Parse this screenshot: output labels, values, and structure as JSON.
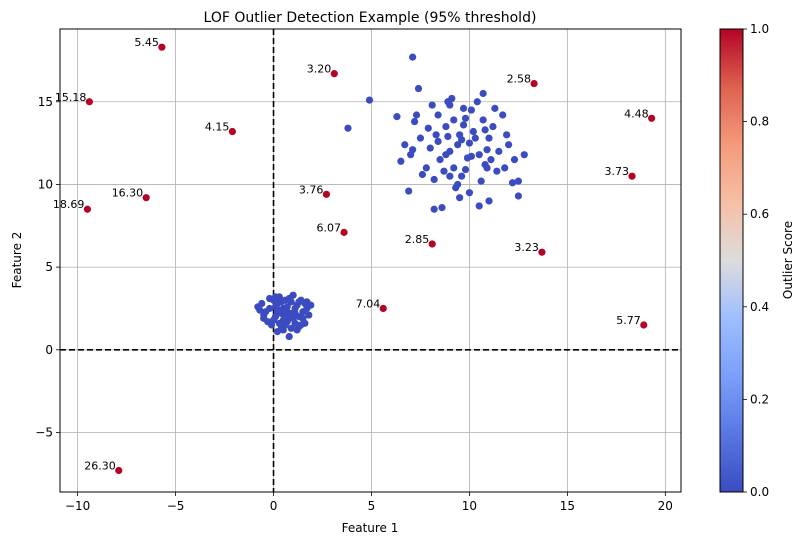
{
  "chart_data": {
    "type": "scatter",
    "title": "LOF Outlier Detection Example (95% threshold)",
    "xlabel": "Feature 1",
    "ylabel": "Feature 2",
    "xlim": [
      -10.9,
      20.8
    ],
    "ylim": [
      -8.6,
      19.4
    ],
    "xticks": [
      -10,
      -5,
      0,
      5,
      10,
      15,
      20
    ],
    "yticks": [
      -5,
      0,
      5,
      10,
      15
    ],
    "grid": true,
    "reference_lines": {
      "x": 0,
      "y": 0,
      "style": "dashed"
    },
    "colorbar": {
      "label": "Outlier Score",
      "colormap": "coolwarm",
      "range": [
        0,
        1
      ],
      "ticks": [
        0.0,
        0.2,
        0.4,
        0.6,
        0.8,
        1.0
      ],
      "tick_labels": [
        "0.0",
        "0.2",
        "0.4",
        "0.6",
        "0.8",
        "1.0"
      ],
      "low_color": "#3b4cc0",
      "high_color": "#b40426"
    },
    "colors": {
      "inlier": "#3b4cc0",
      "outlier": "#b40426"
    },
    "outliers": [
      {
        "x": -5.7,
        "y": 18.3,
        "label": "5.45"
      },
      {
        "x": 3.1,
        "y": 16.7,
        "label": "3.20"
      },
      {
        "x": 13.3,
        "y": 16.1,
        "label": "2.58"
      },
      {
        "x": -9.4,
        "y": 15.0,
        "label": "15.18"
      },
      {
        "x": -2.1,
        "y": 13.2,
        "label": "4.15"
      },
      {
        "x": 19.3,
        "y": 14.0,
        "label": "4.48"
      },
      {
        "x": 18.3,
        "y": 10.5,
        "label": "3.73"
      },
      {
        "x": -6.5,
        "y": 9.2,
        "label": "16.30"
      },
      {
        "x": 2.7,
        "y": 9.4,
        "label": "3.76"
      },
      {
        "x": -9.5,
        "y": 8.5,
        "label": "18.69"
      },
      {
        "x": 3.6,
        "y": 7.1,
        "label": "6.07"
      },
      {
        "x": 8.1,
        "y": 6.4,
        "label": "2.85"
      },
      {
        "x": 13.7,
        "y": 5.9,
        "label": "3.23"
      },
      {
        "x": 5.6,
        "y": 2.5,
        "label": "7.04"
      },
      {
        "x": 18.9,
        "y": 1.5,
        "label": "5.77"
      },
      {
        "x": -7.9,
        "y": -7.3,
        "label": "26.30"
      }
    ],
    "inliers": [
      [
        0.1,
        2.0
      ],
      [
        0.3,
        2.4
      ],
      [
        0.5,
        1.8
      ],
      [
        0.7,
        2.6
      ],
      [
        0.9,
        2.2
      ],
      [
        1.1,
        1.6
      ],
      [
        1.3,
        2.9
      ],
      [
        -0.2,
        2.5
      ],
      [
        -0.5,
        2.1
      ],
      [
        0.0,
        3.0
      ],
      [
        0.4,
        1.4
      ],
      [
        0.8,
        3.1
      ],
      [
        1.2,
        2.7
      ],
      [
        1.5,
        2.3
      ],
      [
        -0.3,
        1.7
      ],
      [
        0.6,
        2.0
      ],
      [
        0.2,
        2.8
      ],
      [
        1.0,
        1.9
      ],
      [
        0.5,
        1.2
      ],
      [
        1.4,
        1.5
      ],
      [
        -0.6,
        2.8
      ],
      [
        0.9,
        1.3
      ],
      [
        1.6,
        2.8
      ],
      [
        0.3,
        3.2
      ],
      [
        -0.1,
        1.5
      ],
      [
        1.3,
        2.0
      ],
      [
        0.7,
        1.7
      ],
      [
        0.1,
        2.6
      ],
      [
        1.8,
        2.1
      ],
      [
        -0.4,
        2.3
      ],
      [
        0.6,
        3.0
      ],
      [
        1.1,
        2.5
      ],
      [
        0.4,
        2.2
      ],
      [
        0.8,
        0.8
      ],
      [
        1.7,
        2.5
      ],
      [
        -0.7,
        2.4
      ],
      [
        1.0,
        3.3
      ],
      [
        0.2,
        1.1
      ],
      [
        1.5,
        1.9
      ],
      [
        0.0,
        1.8
      ],
      [
        0.9,
        2.9
      ],
      [
        1.2,
        1.2
      ],
      [
        0.3,
        1.6
      ],
      [
        -0.2,
        3.1
      ],
      [
        1.9,
        2.7
      ],
      [
        0.5,
        2.5
      ],
      [
        0.7,
        2.3
      ],
      [
        1.4,
        3.0
      ],
      [
        -0.5,
        1.9
      ],
      [
        1.6,
        1.6
      ],
      [
        0.1,
        3.2
      ],
      [
        1.1,
        2.2
      ],
      [
        0.6,
        1.5
      ],
      [
        0.4,
        2.9
      ],
      [
        1.3,
        1.4
      ],
      [
        -0.8,
        2.6
      ],
      [
        1.0,
        2.0
      ],
      [
        0.8,
        1.9
      ],
      [
        0.2,
        2.3
      ],
      [
        1.7,
        2.9
      ],
      [
        9.0,
        12.0
      ],
      [
        9.5,
        13.0
      ],
      [
        10.0,
        12.5
      ],
      [
        8.5,
        11.5
      ],
      [
        9.2,
        11.0
      ],
      [
        10.5,
        11.8
      ],
      [
        8.8,
        13.5
      ],
      [
        9.8,
        14.0
      ],
      [
        10.2,
        13.2
      ],
      [
        11.0,
        12.8
      ],
      [
        8.0,
        12.2
      ],
      [
        9.4,
        12.4
      ],
      [
        10.8,
        11.2
      ],
      [
        7.8,
        11.0
      ],
      [
        9.6,
        10.5
      ],
      [
        11.5,
        12.0
      ],
      [
        8.3,
        13.0
      ],
      [
        10.1,
        14.5
      ],
      [
        9.0,
        14.8
      ],
      [
        11.2,
        13.5
      ],
      [
        7.5,
        12.8
      ],
      [
        12.0,
        12.4
      ],
      [
        8.7,
        10.8
      ],
      [
        10.6,
        10.2
      ],
      [
        9.3,
        9.8
      ],
      [
        11.8,
        11.0
      ],
      [
        7.2,
        13.8
      ],
      [
        8.4,
        14.2
      ],
      [
        10.4,
        15.0
      ],
      [
        12.3,
        11.5
      ],
      [
        7.0,
        11.8
      ],
      [
        9.9,
        11.6
      ],
      [
        8.9,
        12.9
      ],
      [
        10.7,
        13.9
      ],
      [
        11.4,
        10.8
      ],
      [
        8.2,
        10.3
      ],
      [
        9.7,
        13.6
      ],
      [
        10.9,
        12.1
      ],
      [
        7.6,
        10.6
      ],
      [
        12.5,
        10.2
      ],
      [
        9.1,
        15.2
      ],
      [
        7.3,
        14.2
      ],
      [
        11.7,
        14.2
      ],
      [
        8.6,
        8.6
      ],
      [
        10.0,
        9.5
      ],
      [
        11.0,
        9.0
      ],
      [
        12.5,
        9.3
      ],
      [
        9.5,
        9.2
      ],
      [
        6.5,
        11.4
      ],
      [
        6.7,
        12.4
      ],
      [
        7.1,
        12.1
      ],
      [
        11.9,
        13.0
      ],
      [
        12.8,
        11.8
      ],
      [
        8.1,
        14.8
      ],
      [
        10.7,
        15.5
      ],
      [
        9.8,
        10.9
      ],
      [
        8.8,
        11.8
      ],
      [
        10.3,
        12.8
      ],
      [
        9.2,
        13.9
      ],
      [
        11.1,
        11.5
      ],
      [
        9.6,
        12.7
      ],
      [
        8.4,
        12.6
      ],
      [
        10.8,
        13.3
      ],
      [
        9.0,
        10.5
      ],
      [
        7.9,
        13.4
      ],
      [
        7.4,
        15.8
      ],
      [
        7.1,
        17.7
      ],
      [
        8.2,
        8.5
      ],
      [
        4.9,
        15.1
      ],
      [
        3.8,
        13.4
      ],
      [
        10.5,
        8.7
      ],
      [
        12.2,
        10.1
      ],
      [
        6.3,
        14.1
      ],
      [
        9.7,
        14.6
      ],
      [
        6.9,
        9.6
      ],
      [
        11.3,
        14.6
      ],
      [
        10.9,
        11.0
      ],
      [
        8.9,
        15.0
      ],
      [
        9.4,
        10.0
      ],
      [
        10.1,
        11.7
      ]
    ]
  }
}
